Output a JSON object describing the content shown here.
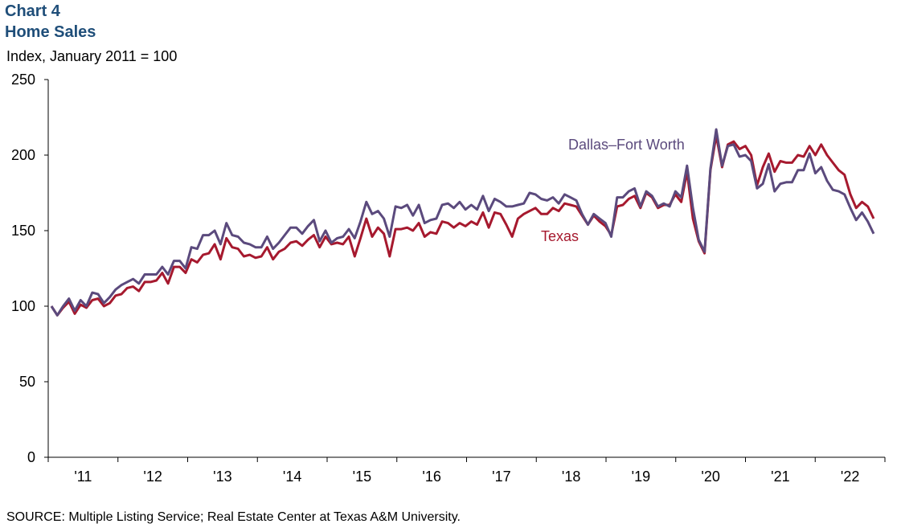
{
  "header": {
    "chart_number": "Chart 4",
    "title": "Home Sales",
    "subtitle": "Index, January 2011 = 100"
  },
  "footer": {
    "source": "SOURCE: Multiple Listing Service; Real Estate Center at Texas A&M University."
  },
  "chart_data": {
    "type": "line",
    "title": "Home Sales",
    "ylabel": "Index, January 2011 = 100",
    "ylim": [
      0,
      250
    ],
    "yticks": [
      0,
      50,
      100,
      150,
      200,
      250
    ],
    "xticks": [
      "'11",
      "'12",
      "'13",
      "'14",
      "'15",
      "'16",
      "'17",
      "'18",
      "'19",
      "'20",
      "'21",
      "'22"
    ],
    "x_start": "2011-01",
    "x_end": "2022-06",
    "frequency": "monthly",
    "grid": false,
    "legend": "inline labels",
    "series": [
      {
        "name": "Texas",
        "color": "#a6192e",
        "values": [
          100,
          94,
          99,
          103,
          95,
          101,
          99,
          104,
          105,
          100,
          102,
          107,
          108,
          112,
          113,
          110,
          116,
          116,
          117,
          122,
          115,
          126,
          126,
          122,
          131,
          129,
          134,
          135,
          141,
          131,
          145,
          139,
          138,
          133,
          134,
          132,
          133,
          139,
          131,
          136,
          138,
          142,
          143,
          140,
          144,
          147,
          139,
          146,
          141,
          142,
          141,
          146,
          133,
          145,
          158,
          146,
          152,
          148,
          133,
          151,
          151,
          152,
          150,
          155,
          146,
          149,
          148,
          156,
          155,
          152,
          155,
          153,
          156,
          154,
          162,
          152,
          162,
          161,
          154,
          146,
          158,
          161,
          163,
          165,
          161,
          161,
          165,
          163,
          168,
          167,
          166,
          160,
          154,
          160,
          156,
          153,
          147,
          166,
          167,
          171,
          173,
          165,
          175,
          172,
          165,
          167,
          167,
          174,
          169,
          189,
          158,
          143,
          135,
          190,
          213,
          192,
          207,
          209,
          204,
          206,
          200,
          180,
          192,
          201,
          189,
          196,
          195,
          195,
          200,
          199,
          206,
          200,
          207,
          200,
          195,
          190,
          187,
          174,
          165,
          169,
          166,
          158
        ]
      },
      {
        "name": "Dallas–Fort Worth",
        "color": "#5b4a7d",
        "values": [
          100,
          94,
          100,
          105,
          97,
          104,
          100,
          109,
          108,
          102,
          106,
          111,
          114,
          116,
          118,
          115,
          121,
          121,
          121,
          126,
          121,
          130,
          130,
          125,
          139,
          138,
          147,
          147,
          150,
          141,
          155,
          147,
          146,
          142,
          141,
          139,
          139,
          146,
          138,
          142,
          147,
          152,
          152,
          148,
          153,
          157,
          143,
          150,
          142,
          145,
          146,
          151,
          145,
          156,
          169,
          161,
          163,
          158,
          146,
          166,
          165,
          167,
          160,
          167,
          155,
          157,
          158,
          167,
          168,
          165,
          169,
          164,
          167,
          164,
          173,
          163,
          171,
          169,
          166,
          166,
          167,
          168,
          175,
          174,
          171,
          170,
          172,
          168,
          174,
          172,
          170,
          161,
          154,
          161,
          158,
          155,
          146,
          172,
          172,
          176,
          178,
          166,
          176,
          173,
          166,
          168,
          166,
          176,
          172,
          193,
          165,
          144,
          136,
          191,
          217,
          193,
          206,
          207,
          199,
          200,
          196,
          178,
          181,
          194,
          176,
          181,
          182,
          182,
          190,
          190,
          201,
          188,
          192,
          183,
          177,
          176,
          174,
          165,
          157,
          162,
          156,
          148
        ]
      }
    ]
  }
}
